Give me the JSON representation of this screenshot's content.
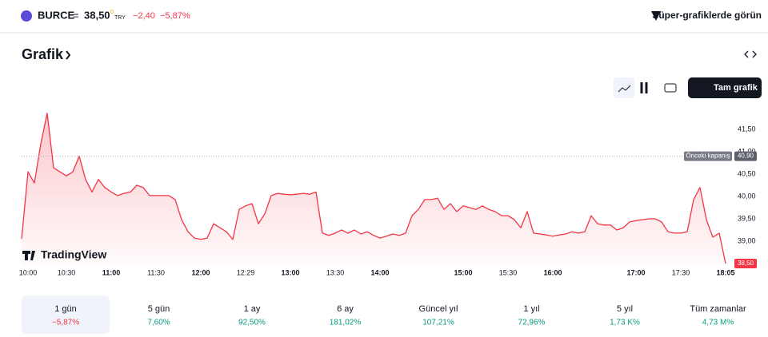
{
  "header": {
    "symbol": "BURCE",
    "equals": "=",
    "price": "38,50",
    "price_sup": "0",
    "currency": "TRY",
    "change": "−2,40",
    "change_pct": "−5,87%",
    "promo": "Süper-grafiklerde görün"
  },
  "section_title": "Grafik",
  "full_chart_button": "Tam grafik",
  "logo": "TradingView",
  "chart_data": {
    "type": "line",
    "color": "#f23645",
    "categories": [
      null,
      "10:00",
      null,
      null,
      null,
      null,
      null,
      "10:30",
      null,
      null,
      null,
      null,
      null,
      null,
      "11:00",
      null,
      null,
      null,
      null,
      null,
      null,
      "11:30",
      null,
      null,
      null,
      null,
      null,
      null,
      "12:00",
      null,
      null,
      null,
      null,
      null,
      null,
      "12:29",
      null,
      null,
      null,
      null,
      null,
      null,
      "13:00",
      null,
      null,
      null,
      null,
      null,
      null,
      "13:30",
      null,
      null,
      null,
      null,
      null,
      null,
      "14:00",
      null,
      null,
      null,
      null,
      null,
      null,
      null,
      null,
      null,
      null,
      null,
      null,
      "15:00",
      null,
      null,
      null,
      null,
      null,
      null,
      "15:30",
      null,
      null,
      null,
      null,
      null,
      null,
      "16:00",
      null,
      null,
      null,
      null,
      null,
      null,
      null,
      null,
      null,
      null,
      null,
      null,
      "17:00",
      null,
      null,
      null,
      null,
      null,
      null,
      "17:30",
      null,
      null,
      null,
      null,
      null,
      null,
      "18:05"
    ],
    "values": [
      39.05,
      40.55,
      40.3,
      41.18,
      41.86,
      40.64,
      40.55,
      40.46,
      40.55,
      40.9,
      40.38,
      40.1,
      40.38,
      40.2,
      40.1,
      40.02,
      40.07,
      40.1,
      40.25,
      40.2,
      40.02,
      40.02,
      40.02,
      40.02,
      39.93,
      39.48,
      39.21,
      39.07,
      39.04,
      39.07,
      39.39,
      39.3,
      39.21,
      39.04,
      39.71,
      39.79,
      39.84,
      39.39,
      39.61,
      40.02,
      40.07,
      40.05,
      40.04,
      40.05,
      40.07,
      40.05,
      40.1,
      39.18,
      39.13,
      39.18,
      39.25,
      39.18,
      39.25,
      39.16,
      39.21,
      39.13,
      39.07,
      39.11,
      39.16,
      39.13,
      39.18,
      39.57,
      39.71,
      39.93,
      39.93,
      39.96,
      39.71,
      39.84,
      39.66,
      39.79,
      39.75,
      39.71,
      39.79,
      39.71,
      39.66,
      39.57,
      39.57,
      39.48,
      39.3,
      39.66,
      39.18,
      39.16,
      39.14,
      39.11,
      39.14,
      39.16,
      39.21,
      39.18,
      39.21,
      39.57,
      39.39,
      39.36,
      39.36,
      39.25,
      39.3,
      39.43,
      39.46,
      39.48,
      39.5,
      39.5,
      39.43,
      39.21,
      39.18,
      39.18,
      39.21,
      39.93,
      40.2,
      39.48,
      39.09,
      39.18,
      38.5
    ],
    "ylim": [
      38.45,
      42.0
    ],
    "yticks": [
      {
        "value": 39,
        "label": "39,00"
      },
      {
        "value": 39.5,
        "label": "39,50"
      },
      {
        "value": 40,
        "label": "40,00"
      },
      {
        "value": 40.5,
        "label": "40,50"
      },
      {
        "value": 41,
        "label": "41,00"
      },
      {
        "value": 41.5,
        "label": "41,50"
      }
    ],
    "previous_close": {
      "name": "Önceki kapanış",
      "value": 40.9,
      "label": "40,90"
    },
    "last_price": {
      "value": 38.5,
      "label": "38,50"
    }
  },
  "periods": [
    {
      "label": "1 gün",
      "change": "−5,87%"
    },
    {
      "label": "5 gün",
      "change": "7,60%"
    },
    {
      "label": "1 ay",
      "change": "92,50%"
    },
    {
      "label": "6 ay",
      "change": "181,02%"
    },
    {
      "label": "Güncel yıl",
      "change": "107,21%"
    },
    {
      "label": "1 yıl",
      "change": "72,96%"
    },
    {
      "label": "5 yıl",
      "change": "1,73 K%"
    },
    {
      "label": "Tüm zamanlar",
      "change": "4,73 M%"
    }
  ]
}
